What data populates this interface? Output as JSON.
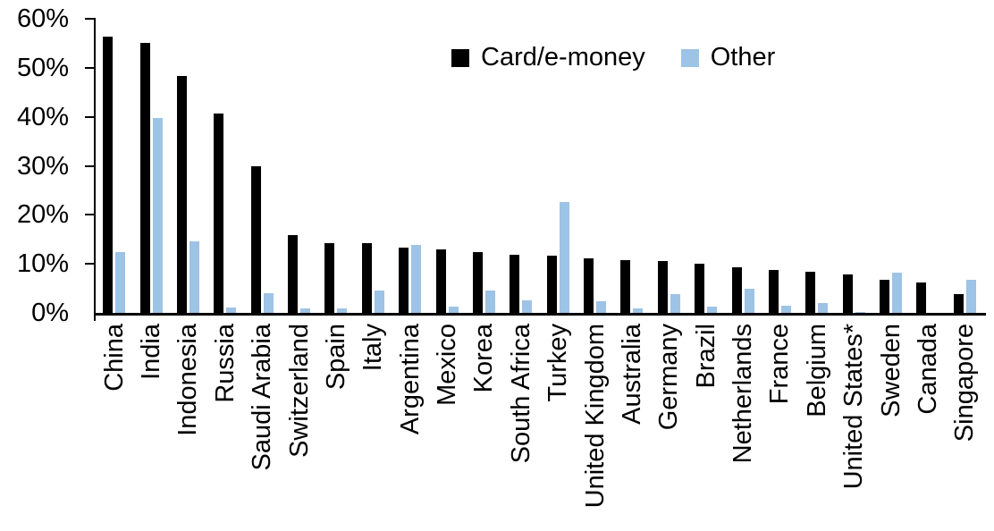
{
  "chart_data": {
    "type": "bar",
    "title": "",
    "xlabel": "",
    "ylabel": "",
    "ylim": [
      0,
      60
    ],
    "grid": false,
    "legend_position": "top-center",
    "ytick_labels": [
      "0%",
      "10%",
      "20%",
      "30%",
      "40%",
      "50%",
      "60%"
    ],
    "categories": [
      "China",
      "India",
      "Indonesia",
      "Russia",
      "Saudi Arabia",
      "Switzerland",
      "Spain",
      "Italy",
      "Argentina",
      "Mexico",
      "Korea",
      "South Africa",
      "Turkey",
      "United Kingdom",
      "Australia",
      "Germany",
      "Brazil",
      "Netherlands",
      "France",
      "Belgium",
      "United States*",
      "Sweden",
      "Canada",
      "Singapore"
    ],
    "series": [
      {
        "name": "Card/e-money",
        "color": "#000000",
        "values": [
          56.3,
          55.0,
          48.4,
          40.6,
          30.0,
          15.8,
          14.3,
          14.2,
          13.4,
          12.9,
          12.4,
          11.8,
          11.6,
          11.2,
          10.8,
          10.6,
          10.0,
          9.3,
          8.7,
          8.3,
          7.9,
          6.7,
          6.2,
          3.9
        ]
      },
      {
        "name": "Other",
        "color": "#9DC3E6",
        "values": [
          12.4,
          39.8,
          14.6,
          1.1,
          4.0,
          0.9,
          1.0,
          4.6,
          13.9,
          1.3,
          4.6,
          2.5,
          22.7,
          2.4,
          0.9,
          3.9,
          1.2,
          4.9,
          1.5,
          2.0,
          0.2,
          8.2,
          0.0,
          6.7
        ]
      }
    ],
    "legend": [
      {
        "label": "Card/e-money",
        "color": "#000000"
      },
      {
        "label": "Other",
        "color": "#9DC3E6"
      }
    ]
  }
}
